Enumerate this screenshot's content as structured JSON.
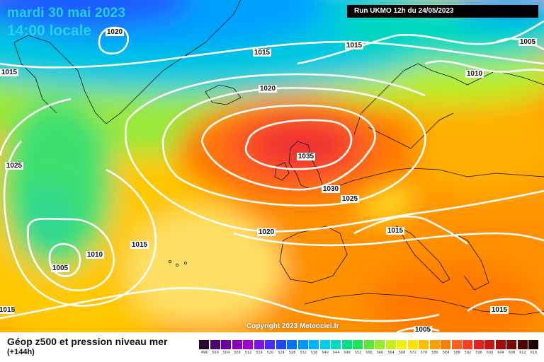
{
  "map": {
    "date_line": "mardi 30 mai 2023",
    "time_line": "14:00 locale",
    "run_label": "Run UKMO 12h du 24/05/2023",
    "copyright": "Copyright 2023 Meteociel.fr"
  },
  "footer": {
    "title": "Géop z500 et pression niveau mer",
    "subtitle": "(+144h)"
  },
  "isobar_labels": [
    "1020",
    "1015",
    "1015",
    "1005",
    "1015",
    "1010",
    "1020",
    "1035",
    "1025",
    "1030",
    "1025",
    "1010",
    "1005",
    "1015",
    "1020",
    "1015",
    "1015",
    "1015",
    "1005"
  ],
  "legend": {
    "values": [
      "496",
      "500",
      "504",
      "508",
      "512",
      "516",
      "520",
      "524",
      "528",
      "532",
      "536",
      "540",
      "544",
      "548",
      "552",
      "556",
      "560",
      "564",
      "568",
      "572",
      "576",
      "580",
      "584",
      "588",
      "592",
      "596",
      "600",
      "604",
      "608",
      "612",
      "616"
    ],
    "colors": [
      "#2a0033",
      "#4b006b",
      "#6b0099",
      "#8a00b8",
      "#a000d0",
      "#7b14e8",
      "#4a2cf6",
      "#1e46ff",
      "#0070ff",
      "#0096ff",
      "#00b4ff",
      "#00cfe8",
      "#00dcc0",
      "#00e08a",
      "#1ee45a",
      "#5ae83a",
      "#96ec28",
      "#c8f018",
      "#eef010",
      "#ffe000",
      "#ffc000",
      "#ffa000",
      "#ff8000",
      "#ff6020",
      "#ff3c20",
      "#e82020",
      "#c81414",
      "#a00c0c",
      "#780808",
      "#500404",
      "#200000"
    ]
  },
  "colors": {
    "title_text": "#22d3e6",
    "isobar": "#ffffff",
    "coast": "#111111"
  }
}
